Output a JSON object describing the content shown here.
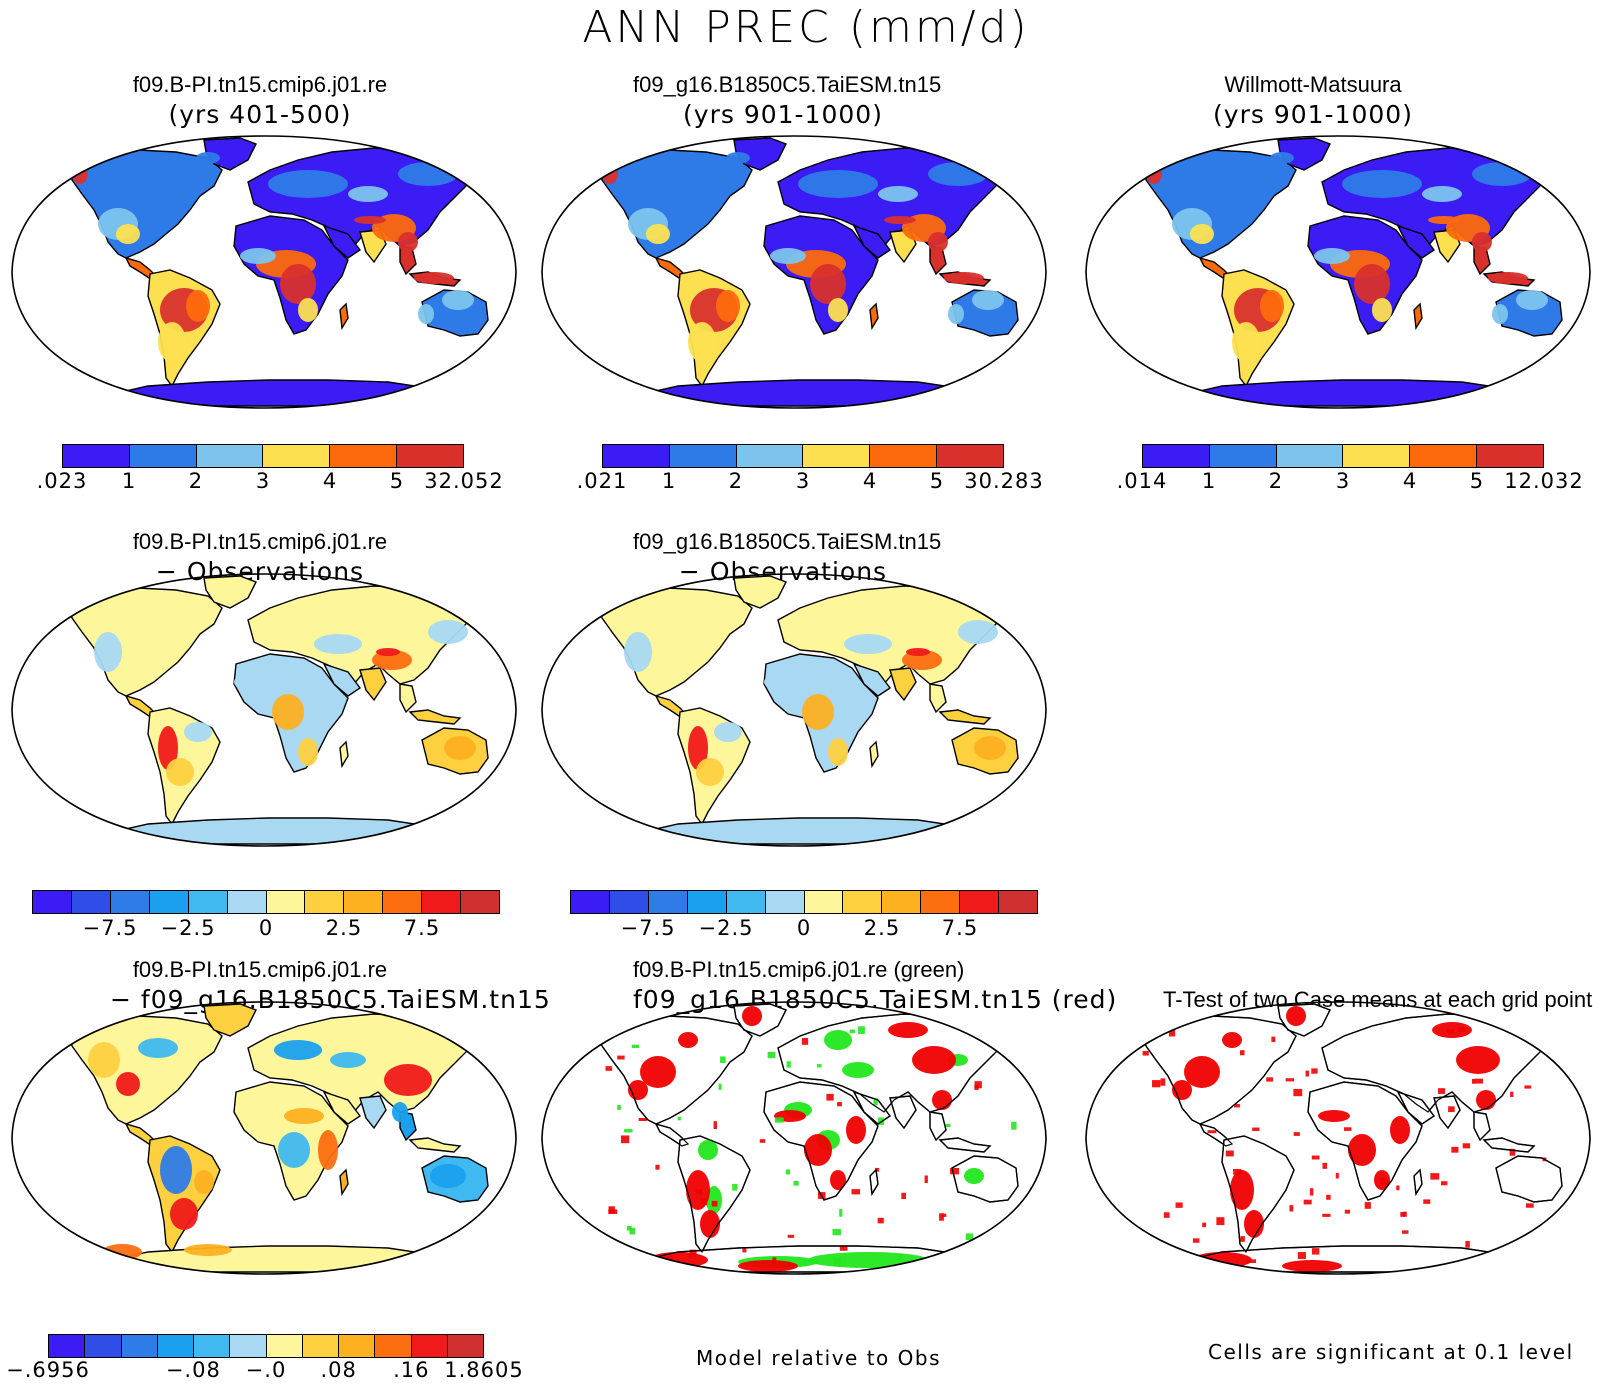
{
  "title": "ANN PREC (mm/d)",
  "colors": {
    "abs_scale": [
      "#3c1cf5",
      "#2e7be8",
      "#7cc4ee",
      "#fde050",
      "#fd6a0c",
      "#d9302c"
    ],
    "diff_scale": [
      "#3c1cf5",
      "#2f4ee8",
      "#2f7be8",
      "#1aa0ee",
      "#40b8f0",
      "#a8d8f2",
      "#fef69a",
      "#fdd040",
      "#fdb020",
      "#fd6e10",
      "#f01a1a",
      "#d03030"
    ],
    "rel_scale": [
      "#3c1cf5",
      "#2f4ee8",
      "#2f7be8",
      "#1aa0ee",
      "#40b8f0",
      "#a8d8f2",
      "#fef69a",
      "#fdd040",
      "#fdb020",
      "#fd6e10",
      "#f01a1a",
      "#d03030"
    ],
    "green": "#22e61e",
    "red": "#f00000"
  },
  "panels": {
    "p1": {
      "line1": "f09.B-PI.tn15.cmip6.j01.re",
      "line2": "(yrs 401-500)",
      "ticks": [
        ".023",
        "1",
        "2",
        "3",
        "4",
        "5",
        "32.052"
      ]
    },
    "p2": {
      "line1": "f09_g16.B1850C5.TaiESM.tn15",
      "line2": "(yrs 901-1000)",
      "ticks": [
        ".021",
        "1",
        "2",
        "3",
        "4",
        "5",
        "30.283"
      ]
    },
    "p3": {
      "line1": "Willmott-Matsuura",
      "line2": "(yrs 901-1000)",
      "ticks": [
        ".014",
        "1",
        "2",
        "3",
        "4",
        "5",
        "12.032"
      ]
    },
    "p4": {
      "line1": "f09.B-PI.tn15.cmip6.j01.re",
      "line2": "− Observations",
      "ticks": [
        "−7.5",
        "−2.5",
        "0",
        "2.5",
        "7.5"
      ]
    },
    "p5": {
      "line1": "f09_g16.B1850C5.TaiESM.tn15",
      "line2": "− Observations",
      "ticks": [
        "−7.5",
        "−2.5",
        "0",
        "2.5",
        "7.5"
      ]
    },
    "p6": {
      "line1": "f09.B-PI.tn15.cmip6.j01.re",
      "line2": "− f09_g16.B1850C5.TaiESM.tn15",
      "ticks": [
        "−.6956",
        "−.08",
        "−.0",
        ".08",
        ".16",
        "1.8605"
      ]
    },
    "p7": {
      "line1": "f09.B-PI.tn15.cmip6.j01.re (green)",
      "line2": "f09_g16.B1850C5.TaiESM.tn15 (red)",
      "note": "Model relative to Obs"
    },
    "p8": {
      "line1": "T-Test of two Case means at each grid point",
      "note": "Cells are significant at 0.1 level"
    }
  }
}
